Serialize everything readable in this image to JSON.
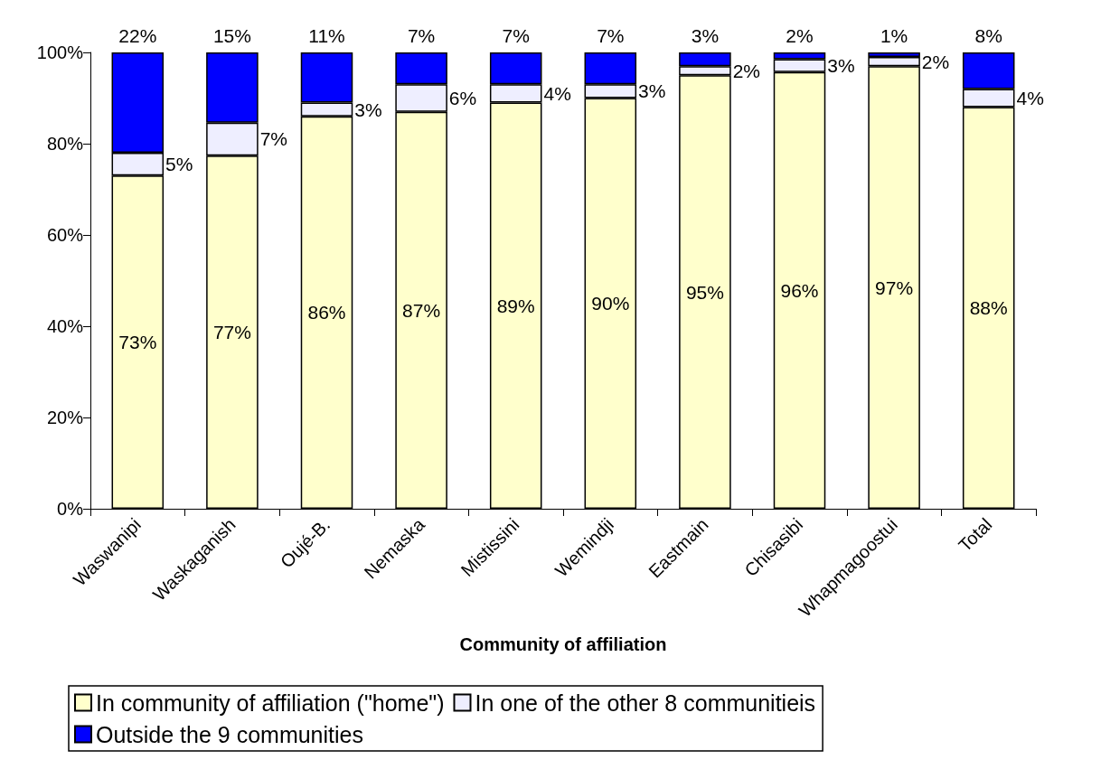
{
  "chart_data": {
    "type": "bar",
    "stacked": true,
    "xlabel": "Community of affiliation",
    "categories": [
      "Waswanipi",
      "Waskaganish",
      "Oujé-B.",
      "Nemaska",
      "Mistissini",
      "Wemindji",
      "Eastmain",
      "Chisasibi",
      "Whapmagoostui",
      "Total"
    ],
    "series": [
      {
        "name": "In community of affiliation (\"home\")",
        "color": "#ffffcc",
        "values": [
          73,
          77.4,
          86,
          87,
          89,
          90,
          95,
          95.7,
          97,
          88
        ],
        "value_labels": [
          "73%",
          "77%",
          "86%",
          "87%",
          "89%",
          "90%",
          "95%",
          "96%",
          "97%",
          "88%"
        ]
      },
      {
        "name": "In one of the other 8 communitieis",
        "color": "#eeeeff",
        "values": [
          5,
          7.2,
          3,
          6,
          4,
          3,
          2,
          2.8,
          2,
          4
        ],
        "value_labels": [
          "5%",
          "7%",
          "3%",
          "6%",
          "4%",
          "3%",
          "2%",
          "3%",
          "2%",
          "4%"
        ]
      },
      {
        "name": "Outside the 9 communities",
        "color": "#0000ff",
        "values": [
          22,
          15.4,
          11,
          7,
          7,
          7,
          3,
          1.5,
          1,
          8
        ],
        "value_labels": [
          "22%",
          "15%",
          "11%",
          "7%",
          "7%",
          "7%",
          "3%",
          "2%",
          "1%",
          "8%"
        ]
      }
    ],
    "ylim": [
      0,
      100
    ],
    "yticks": [
      {
        "value": 0,
        "label": "0%"
      },
      {
        "value": 20,
        "label": "20%"
      },
      {
        "value": 40,
        "label": "40%"
      },
      {
        "value": 60,
        "label": "60%"
      },
      {
        "value": 80,
        "label": "80%"
      },
      {
        "value": 100,
        "label": "100%"
      }
    ],
    "grid": false,
    "legend": "bottom"
  }
}
